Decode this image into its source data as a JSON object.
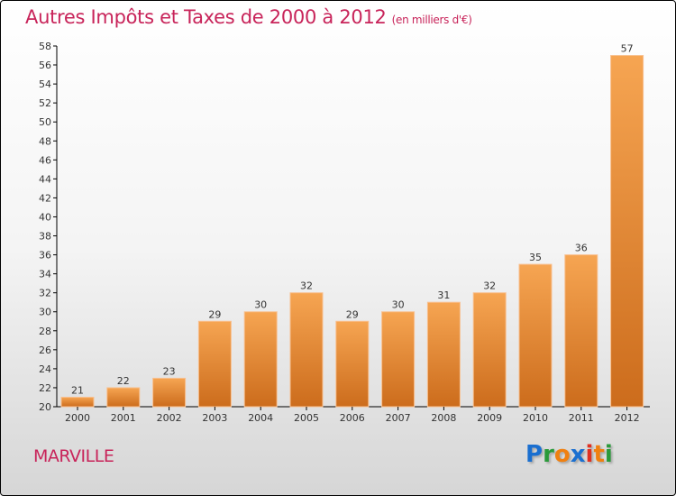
{
  "chart_data": {
    "type": "bar",
    "title": "Autres Impôts et Taxes de 2000 à 2012",
    "subtitle": "(en milliers d'€)",
    "categories": [
      "2000",
      "2001",
      "2002",
      "2003",
      "2004",
      "2005",
      "2006",
      "2007",
      "2008",
      "2009",
      "2010",
      "2011",
      "2012"
    ],
    "values": [
      21,
      22,
      23,
      29,
      30,
      32,
      29,
      30,
      31,
      32,
      35,
      36,
      57
    ],
    "ylim": [
      20,
      58
    ],
    "yticks": [
      20,
      22,
      24,
      26,
      28,
      30,
      32,
      34,
      36,
      38,
      40,
      42,
      44,
      46,
      48,
      50,
      52,
      54,
      56,
      58
    ],
    "xlabel": "",
    "ylabel": "",
    "grid": false
  },
  "place": "MARVILLE",
  "logo": {
    "text": "Proxiti",
    "letters": [
      {
        "c": "P",
        "color": "#1a6fd0"
      },
      {
        "c": "r",
        "color": "#2a9a3a"
      },
      {
        "c": "o",
        "color": "#f08010"
      },
      {
        "c": "x",
        "color": "#1a6fd0"
      },
      {
        "c": "i",
        "color": "#e03020"
      },
      {
        "c": "t",
        "color": "#f08010"
      },
      {
        "c": "i",
        "color": "#2a9a3a"
      }
    ]
  },
  "colors": {
    "bar_top": "#f6a552",
    "bar_bottom": "#d0701e",
    "title": "#c8245a"
  }
}
